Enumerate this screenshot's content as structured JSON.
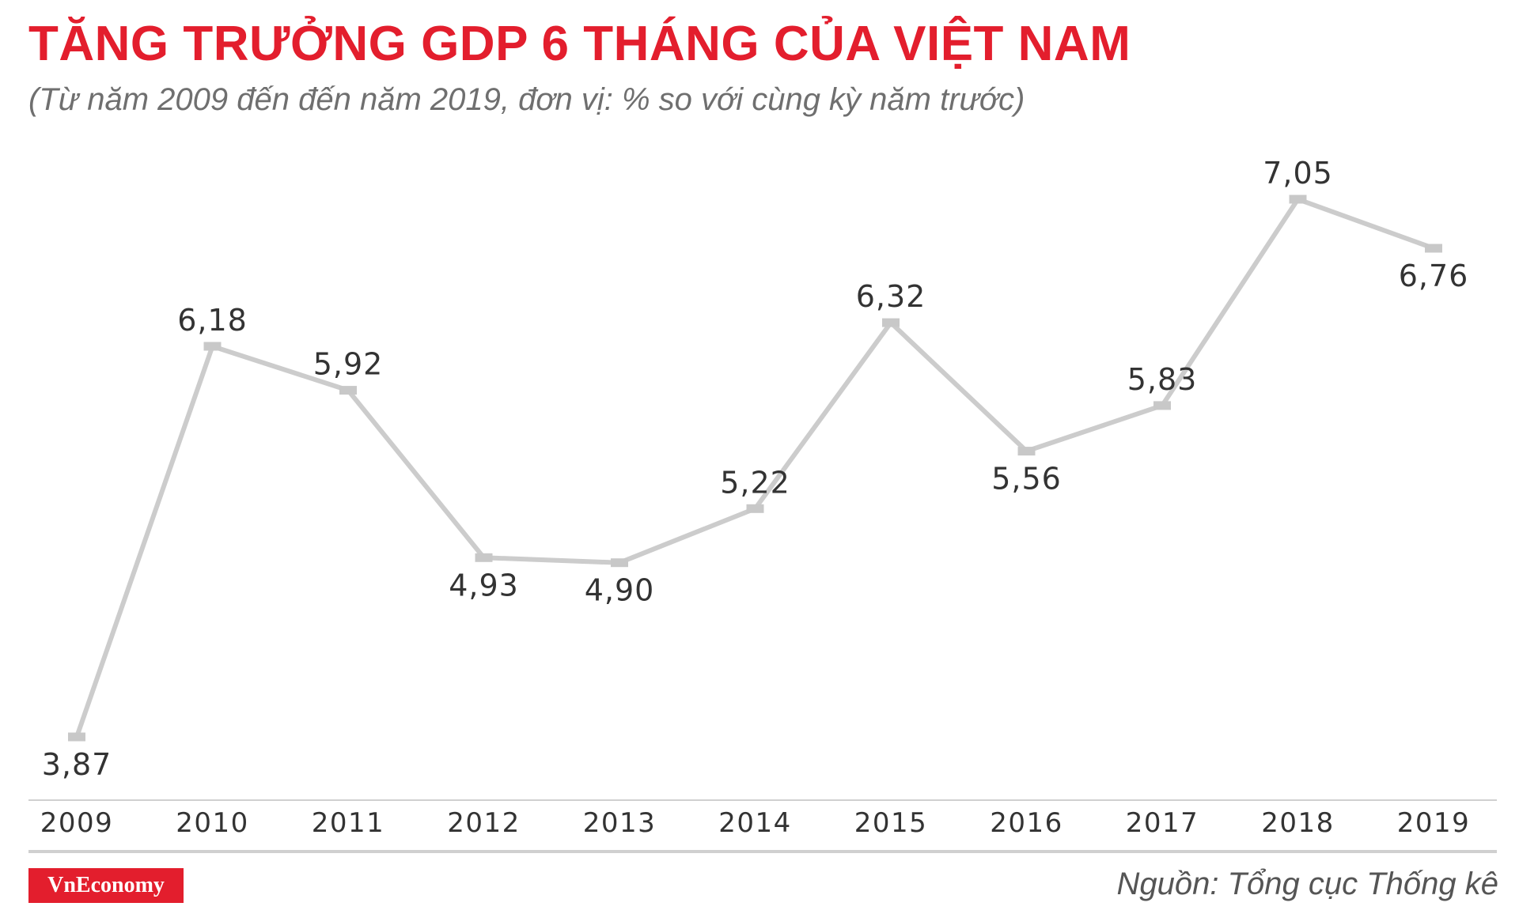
{
  "title": "TĂNG TRƯỞNG GDP 6 THÁNG CỦA VIỆT NAM",
  "subtitle": "(Từ năm 2009 đến đến năm 2019, đơn vị: % so với cùng kỳ năm trước)",
  "brand": "VnEconomy",
  "source": "Nguồn: Tổng cục Thống kê",
  "colors": {
    "title": "#e31e2d",
    "line": "#cccccc",
    "marker": "#c8c8c8",
    "label": "#333333",
    "axis": "#d0d0d0",
    "brand_bg": "#e31e2d"
  },
  "chart_data": {
    "type": "line",
    "categories": [
      "2009",
      "2010",
      "2011",
      "2012",
      "2013",
      "2014",
      "2015",
      "2016",
      "2017",
      "2018",
      "2019"
    ],
    "values": [
      3.87,
      6.18,
      5.92,
      4.93,
      4.9,
      5.22,
      6.32,
      5.56,
      5.83,
      7.05,
      6.76
    ],
    "data_labels": [
      "3,87",
      "6,18",
      "5,92",
      "4,93",
      "4,90",
      "5,22",
      "6,32",
      "5,56",
      "5,83",
      "7,05",
      "6,76"
    ],
    "label_positions": [
      "below",
      "above",
      "above",
      "below",
      "below",
      "above",
      "above",
      "below",
      "above",
      "above",
      "below"
    ],
    "title": "TĂNG TRƯỞNG GDP 6 THÁNG CỦA VIỆT NAM",
    "xlabel": "",
    "ylabel": "",
    "grid": false,
    "legend": "none"
  }
}
